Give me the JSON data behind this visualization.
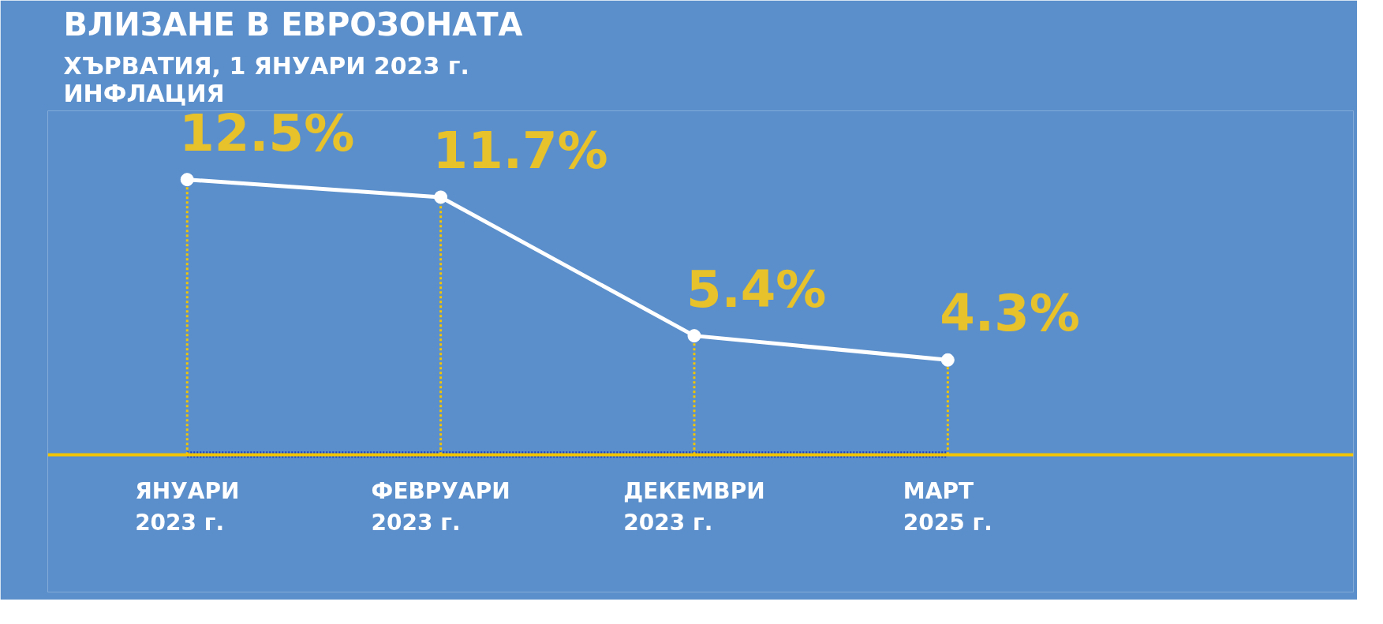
{
  "chart_data": {
    "type": "line",
    "title": "ВЛИЗАНЕ В ЕВРОЗОНАТА",
    "subtitle": "ХЪРВАТИЯ, 1 ЯНУАРИ 2023 г.\nИНФЛАЦИЯ",
    "categories": [
      "ЯНУАРИ\n2023 г.",
      "ФЕВРУАРИ\n2023 г.",
      "ДЕКЕМВРИ\n2023 г.",
      "МАРТ\n2025 г."
    ],
    "series": [
      {
        "color": "#ffffff",
        "values": [
          12.5,
          11.7,
          5.4,
          4.3
        ],
        "value_labels": [
          "12.5%",
          "11.7%",
          "5.4%",
          "4.3%"
        ]
      }
    ],
    "marker": "circle",
    "line_style": "solid",
    "grid": "x"
  }
}
